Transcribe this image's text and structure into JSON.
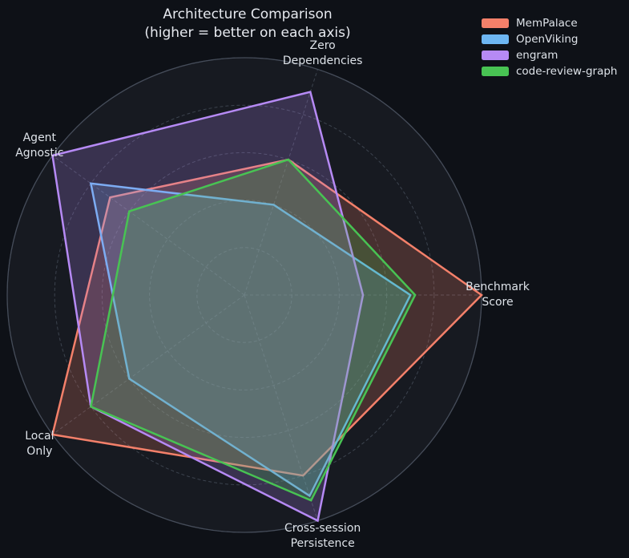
{
  "figure": {
    "title": {
      "line1": "Architecture Comparison",
      "line2": "(higher = better on each axis)"
    },
    "colors": {
      "figure_bg": "#0e1117",
      "axes_bg": "#171a21",
      "grid": "#3c434e",
      "spine": "#454c59",
      "text": "#dde2e8"
    }
  },
  "chart_data": {
    "type": "radar",
    "title": "Architecture Comparison (higher = better on each axis)",
    "axes": [
      {
        "label": "Benchmark Score",
        "lines": [
          "Benchmark",
          "Score"
        ],
        "angle_deg": 0
      },
      {
        "label": "Zero Dependencies",
        "lines": [
          "Zero",
          "Dependencies"
        ],
        "angle_deg": 72
      },
      {
        "label": "Agent Agnostic",
        "lines": [
          "Agent",
          "Agnostic"
        ],
        "angle_deg": 144
      },
      {
        "label": "Local Only",
        "lines": [
          "Local",
          "Only"
        ],
        "angle_deg": 216
      },
      {
        "label": "Cross-session Persistence",
        "lines": [
          "Cross-session",
          "Persistence"
        ],
        "angle_deg": 288
      }
    ],
    "scale": {
      "min": 0,
      "max": 10,
      "rings": [
        2,
        4,
        6,
        8,
        10
      ],
      "tick_labels_visible": false
    },
    "series": [
      {
        "name": "MemPalace",
        "color": "#f4806a",
        "values": [
          10,
          6,
          7,
          10,
          8
        ]
      },
      {
        "name": "OpenViking",
        "color": "#6db6f2",
        "values": [
          7,
          4,
          8,
          6,
          8.9
        ]
      },
      {
        "name": "engram",
        "color": "#b68af5",
        "values": [
          5,
          9,
          10,
          8,
          10
        ]
      },
      {
        "name": "code-review-graph",
        "color": "#48c353",
        "values": [
          7.2,
          6,
          6,
          8,
          9.1
        ]
      }
    ],
    "values_axis_order": [
      "Benchmark Score",
      "Zero Dependencies",
      "Agent Agnostic",
      "Local Only",
      "Cross-session Persistence"
    ],
    "fill_alpha": 0.22,
    "grid_style": "dashed",
    "legend_position": "upper right"
  }
}
